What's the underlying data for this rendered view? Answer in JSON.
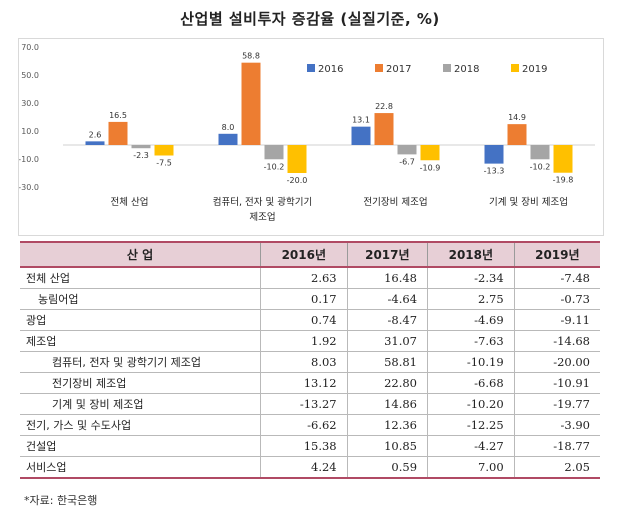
{
  "title": "산업별 설비투자 증감율 (실질기준, %)",
  "chart_data": {
    "type": "bar",
    "categories": [
      "전체 산업",
      "컴퓨터, 전자 및 광학기기 제조업",
      "전기장비 제조업",
      "기계 및 장비 제조업"
    ],
    "category_lines": [
      [
        "전체 산업"
      ],
      [
        "컴퓨터, 전자 및 광학기기",
        "제조업"
      ],
      [
        "전기장비 제조업"
      ],
      [
        "기계 및 장비 제조업"
      ]
    ],
    "series": [
      {
        "name": "2016",
        "color": "#4472c4",
        "values": [
          2.6,
          8.0,
          13.1,
          -13.3
        ]
      },
      {
        "name": "2017",
        "color": "#ed7d31",
        "values": [
          16.5,
          58.8,
          22.8,
          14.9
        ]
      },
      {
        "name": "2018",
        "color": "#a5a5a5",
        "values": [
          -2.3,
          -10.2,
          -6.7,
          -10.2
        ]
      },
      {
        "name": "2019",
        "color": "#ffc000",
        "values": [
          -7.5,
          -20.0,
          -10.9,
          -19.8
        ]
      }
    ],
    "ylim": [
      -30,
      70
    ],
    "yticks": [
      "70.0",
      "50.0",
      "30.0",
      "10.0",
      "-10.0",
      "-30.0"
    ],
    "ytick_values": [
      70,
      50,
      30,
      10,
      -10,
      -30
    ],
    "grid": false,
    "legend": "top-right"
  },
  "table": {
    "headers": [
      "산 업",
      "2016년",
      "2017년",
      "2018년",
      "2019년"
    ],
    "rows": [
      {
        "label": "전체 산업",
        "level": 0,
        "values": [
          "2.63",
          "16.48",
          "-2.34",
          "-7.48"
        ]
      },
      {
        "label": "농림어업",
        "level": 1,
        "values": [
          "0.17",
          "-4.64",
          "2.75",
          "-0.73"
        ]
      },
      {
        "label": "광업",
        "level": 0,
        "values": [
          "0.74",
          "-8.47",
          "-4.69",
          "-9.11"
        ]
      },
      {
        "label": "제조업",
        "level": 0,
        "values": [
          "1.92",
          "31.07",
          "-7.63",
          "-14.68"
        ]
      },
      {
        "label": "컴퓨터, 전자 및 광학기기 제조업",
        "level": 2,
        "values": [
          "8.03",
          "58.81",
          "-10.19",
          "-20.00"
        ]
      },
      {
        "label": "전기장비 제조업",
        "level": 2,
        "values": [
          "13.12",
          "22.80",
          "-6.68",
          "-10.91"
        ]
      },
      {
        "label": "기계 및 장비 제조업",
        "level": 2,
        "values": [
          "-13.27",
          "14.86",
          "-10.20",
          "-19.77"
        ]
      },
      {
        "label": "전기, 가스 및 수도사업",
        "level": 0,
        "values": [
          "-6.62",
          "12.36",
          "-12.25",
          "-3.90"
        ]
      },
      {
        "label": "건설업",
        "level": 0,
        "values": [
          "15.38",
          "10.85",
          "-4.27",
          "-18.77"
        ]
      },
      {
        "label": "서비스업",
        "level": 0,
        "values": [
          "4.24",
          "0.59",
          "7.00",
          "2.05"
        ]
      }
    ]
  },
  "source": "*자료: 한국은행"
}
